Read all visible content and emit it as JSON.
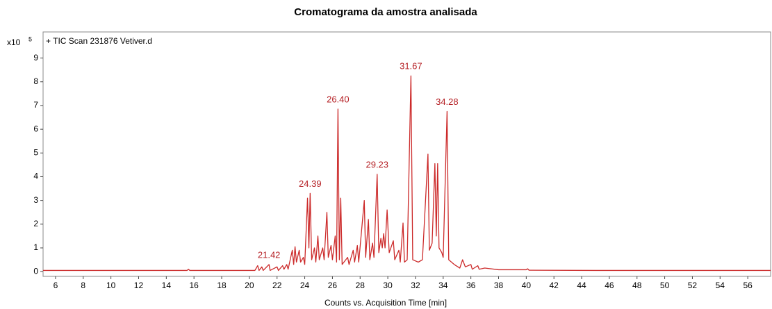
{
  "chart_data": {
    "type": "line",
    "title": "Cromatograma da amostra analisada",
    "x_label": "Counts vs. Acquisition Time [min]",
    "y_multiplier": "x10",
    "y_multiplier_exponent": "5",
    "xlim": [
      5.1,
      57.65
    ],
    "ylim": [
      -0.2,
      10.1
    ],
    "xticks": [
      6,
      8,
      10,
      12,
      14,
      16,
      18,
      20,
      22,
      24,
      26,
      28,
      30,
      32,
      34,
      36,
      38,
      40,
      42,
      44,
      46,
      48,
      50,
      52,
      54,
      56
    ],
    "yticks": [
      0,
      1,
      2,
      3,
      4,
      5,
      6,
      7,
      8,
      9
    ],
    "grid": false,
    "x": [
      5.1,
      15.5,
      15.6,
      15.7,
      20.4,
      20.6,
      20.7,
      20.9,
      21.0,
      21.42,
      21.5,
      22.0,
      22.1,
      22.4,
      22.5,
      22.7,
      22.8,
      23.1,
      23.2,
      23.3,
      23.4,
      23.6,
      23.7,
      23.9,
      24.0,
      24.2,
      24.3,
      24.39,
      24.5,
      24.7,
      24.8,
      24.95,
      25.05,
      25.3,
      25.4,
      25.6,
      25.7,
      25.9,
      26.0,
      26.2,
      26.3,
      26.4,
      26.5,
      26.6,
      26.7,
      27.1,
      27.2,
      27.5,
      27.6,
      27.8,
      27.9,
      28.3,
      28.4,
      28.6,
      28.7,
      28.9,
      29.0,
      29.23,
      29.35,
      29.5,
      29.6,
      29.7,
      29.8,
      29.95,
      30.1,
      30.4,
      30.5,
      30.8,
      30.9,
      31.1,
      31.2,
      31.4,
      31.67,
      31.8,
      32.2,
      32.5,
      32.9,
      33.0,
      33.2,
      33.4,
      33.5,
      33.6,
      33.7,
      33.9,
      34.0,
      34.28,
      34.4,
      34.8,
      35.2,
      35.4,
      35.6,
      36.0,
      36.1,
      36.5,
      36.6,
      37.0,
      38.0,
      40.0,
      40.1,
      40.2,
      45.0,
      57.65
    ],
    "series": [
      {
        "name": "+ TIC Scan 231876 Vetiver.d",
        "color": "#cc2a2a",
        "values": [
          0.05,
          0.05,
          0.1,
          0.05,
          0.05,
          0.25,
          0.05,
          0.2,
          0.05,
          0.3,
          0.05,
          0.2,
          0.05,
          0.25,
          0.1,
          0.3,
          0.1,
          0.9,
          0.3,
          1.05,
          0.4,
          0.9,
          0.4,
          0.6,
          0.3,
          3.1,
          1.0,
          3.3,
          0.5,
          1.0,
          0.4,
          1.5,
          0.5,
          1.0,
          0.5,
          2.5,
          0.6,
          1.1,
          0.5,
          1.5,
          0.4,
          6.85,
          0.5,
          3.1,
          0.3,
          0.6,
          0.3,
          0.9,
          0.4,
          1.1,
          0.4,
          3.0,
          0.6,
          2.2,
          0.5,
          1.2,
          0.6,
          4.1,
          0.8,
          1.4,
          1.0,
          1.6,
          1.0,
          2.6,
          0.8,
          1.3,
          0.5,
          0.9,
          0.4,
          2.05,
          0.4,
          0.5,
          8.25,
          0.5,
          0.4,
          0.5,
          4.95,
          0.9,
          1.2,
          4.55,
          1.5,
          4.55,
          1.0,
          0.8,
          0.6,
          6.75,
          0.5,
          0.3,
          0.15,
          0.5,
          0.2,
          0.3,
          0.1,
          0.25,
          0.1,
          0.15,
          0.08,
          0.08,
          0.12,
          0.06,
          0.05,
          0.05
        ]
      }
    ],
    "annotations": [
      {
        "x": 21.42,
        "y": 0.3,
        "label": "21.42"
      },
      {
        "x": 24.39,
        "y": 3.3,
        "label": "24.39"
      },
      {
        "x": 26.4,
        "y": 6.85,
        "label": "26.40"
      },
      {
        "x": 29.23,
        "y": 4.1,
        "label": "29.23"
      },
      {
        "x": 31.67,
        "y": 8.25,
        "label": "31.67"
      },
      {
        "x": 34.28,
        "y": 6.75,
        "label": "34.28"
      }
    ]
  }
}
